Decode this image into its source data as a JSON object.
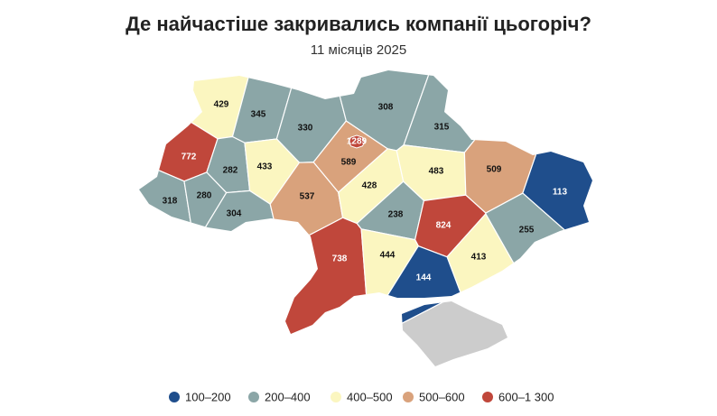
{
  "title": "Де найчастіше закривались компанії цьогоріч?",
  "subtitle": "11 місяців 2025",
  "regions": [
    429,
    345,
    330,
    1289,
    589,
    308,
    315,
    772,
    282,
    433,
    318,
    280,
    304,
    537,
    428,
    483,
    509,
    113,
    238,
    824,
    255,
    738,
    444,
    413,
    144,
    null
  ],
  "no_data_color": "#cccccc",
  "legend": [
    {
      "min": 100,
      "max": 200,
      "label": "100–200",
      "color": "#1f4e8c"
    },
    {
      "min": 200,
      "max": 400,
      "label": "200–400",
      "color": "#8ba6a7"
    },
    {
      "min": 400,
      "max": 500,
      "label": "400–500",
      "color": "#fbf6c0"
    },
    {
      "min": 500,
      "max": 600,
      "label": "500–600",
      "color": "#d9a27c"
    },
    {
      "min": 600,
      "max": 1300,
      "label": "600–1 300",
      "color": "#c0473b"
    }
  ]
}
